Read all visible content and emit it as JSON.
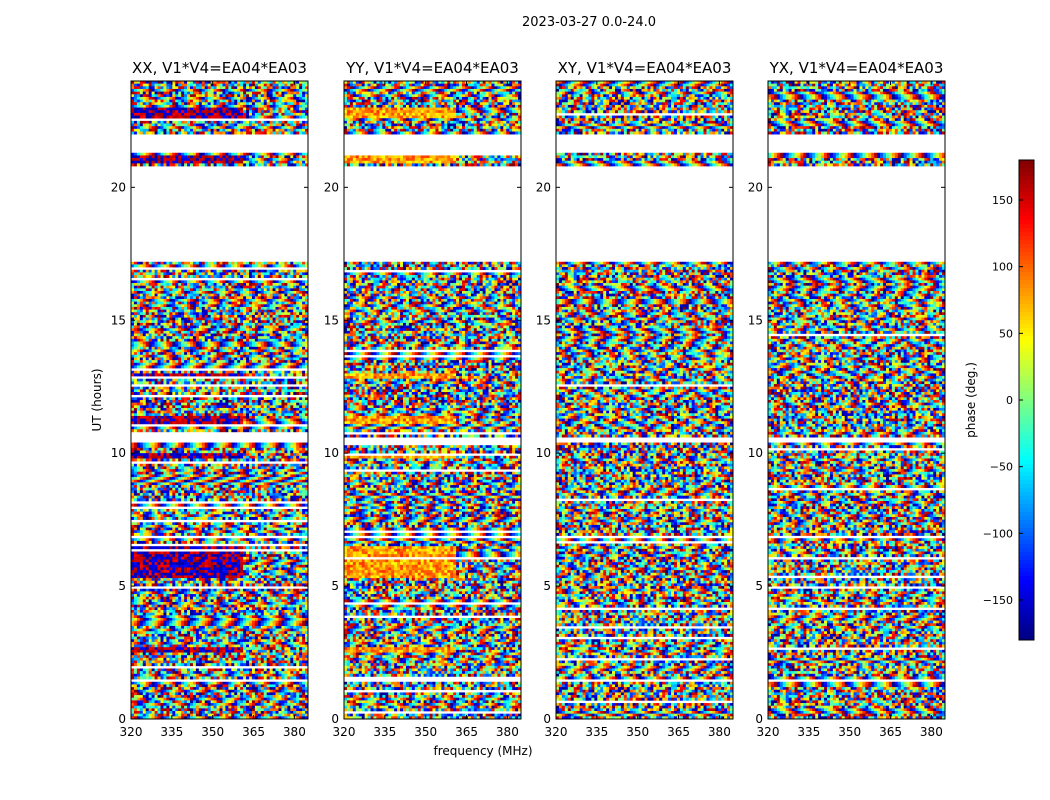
{
  "chart_data": {
    "type": "heatmap",
    "suptitle": "2023-03-27 0.0-24.0",
    "xlabel": "frequency (MHz)",
    "ylabel": "UT (hours)",
    "xlim": [
      320,
      385
    ],
    "ylim": [
      0,
      24
    ],
    "xticks": [
      "320",
      "335",
      "350",
      "365",
      "380"
    ],
    "xtick_values": [
      320,
      335,
      350,
      365,
      380
    ],
    "yticks": [
      "0",
      "5",
      "10",
      "15",
      "20"
    ],
    "ytick_values": [
      0,
      5,
      10,
      15,
      20
    ],
    "colorbar": {
      "label": "phase (deg.)",
      "range": [
        -180,
        180
      ],
      "ticks": [
        "150",
        "100",
        "50",
        "0",
        "−50",
        "−100",
        "−150"
      ],
      "tick_values": [
        150,
        100,
        50,
        0,
        -50,
        -100,
        -150
      ],
      "colormap": "jet"
    },
    "panels": [
      {
        "title": "XX, V1*V4=EA04*EA03",
        "coherent_phase": -150,
        "coherent_alt": 150
      },
      {
        "title": "YY, V1*V4=EA04*EA03",
        "coherent_phase": 60,
        "coherent_alt": 100
      },
      {
        "title": "XY, V1*V4=EA04*EA03",
        "coherent_phase": null,
        "coherent_alt": null
      },
      {
        "title": "YX, V1*V4=EA04*EA03",
        "coherent_phase": null,
        "coherent_alt": null
      }
    ],
    "flagged_intervals_hours": [
      [
        17.2,
        20.8
      ],
      [
        21.3,
        22.0
      ],
      [
        10.4,
        10.6
      ],
      [
        6.8,
        6.9
      ],
      [
        1.4,
        1.5
      ]
    ],
    "coherent_intervals_hours": [
      [
        5.3,
        6.5
      ],
      [
        12.8,
        13.0
      ],
      [
        11.1,
        11.4
      ],
      [
        9.8,
        10.0
      ],
      [
        2.5,
        2.7
      ],
      [
        22.6,
        23.0
      ],
      [
        20.9,
        21.2
      ]
    ]
  }
}
